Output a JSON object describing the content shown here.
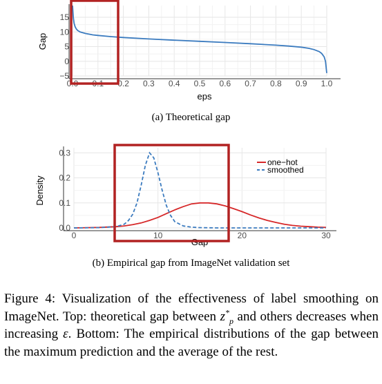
{
  "chart_data": [
    {
      "type": "line",
      "title": "",
      "xlabel": "eps",
      "ylabel": "Gap",
      "xlim": [
        0.0,
        1.0
      ],
      "ylim": [
        -5,
        19
      ],
      "x_ticks": [
        "0.0",
        "0.1",
        "0.2",
        "0.3",
        "0.4",
        "0.5",
        "0.6",
        "0.7",
        "0.8",
        "0.9",
        "1.0"
      ],
      "y_ticks": [
        "−5",
        "0",
        "5",
        "10",
        "15"
      ],
      "grid": true,
      "series": [
        {
          "color": "#3b7bbf",
          "x": [
            0.0,
            0.003,
            0.006,
            0.01,
            0.015,
            0.02,
            0.03,
            0.05,
            0.08,
            0.1,
            0.15,
            0.2,
            0.3,
            0.4,
            0.5,
            0.6,
            0.7,
            0.8,
            0.85,
            0.9,
            0.93,
            0.95,
            0.97,
            0.98,
            0.99,
            0.995,
            1.0
          ],
          "y": [
            19.0,
            15.0,
            13.0,
            11.8,
            11.0,
            10.5,
            10.0,
            9.5,
            9.0,
            8.8,
            8.4,
            8.1,
            7.6,
            7.2,
            6.8,
            6.4,
            6.0,
            5.5,
            5.2,
            4.8,
            4.4,
            4.0,
            3.3,
            2.7,
            1.5,
            0.0,
            -4.0
          ]
        }
      ],
      "annotations": [
        "highlight box over eps 0.0–0.15"
      ]
    },
    {
      "type": "line",
      "title": "",
      "xlabel": "Gap",
      "ylabel": "Density",
      "xlim": [
        0,
        30
      ],
      "ylim": [
        0.0,
        0.32
      ],
      "x_ticks": [
        "0",
        "10",
        "20",
        "30"
      ],
      "y_ticks": [
        "0.0",
        "0.1",
        "0.2",
        "0.3"
      ],
      "grid": true,
      "legend": "top-right",
      "series": [
        {
          "name": "one−hot",
          "color": "#d62728",
          "dash": "solid",
          "x": [
            0,
            3,
            5,
            6,
            7,
            8,
            9,
            10,
            11,
            12,
            13,
            14,
            15,
            16,
            17,
            18,
            19,
            20,
            21,
            22,
            23,
            24,
            25,
            26,
            27,
            28,
            29,
            30
          ],
          "y": [
            0.0,
            0.002,
            0.005,
            0.008,
            0.013,
            0.02,
            0.03,
            0.042,
            0.057,
            0.072,
            0.085,
            0.096,
            0.1,
            0.1,
            0.096,
            0.088,
            0.077,
            0.065,
            0.052,
            0.04,
            0.03,
            0.022,
            0.015,
            0.01,
            0.007,
            0.005,
            0.003,
            0.002
          ]
        },
        {
          "name": "smoothed",
          "color": "#3b7bbf",
          "dash": "dashed",
          "x": [
            0,
            3,
            5,
            6,
            6.5,
            7,
            7.5,
            8,
            8.5,
            9,
            9.5,
            10,
            10.5,
            11,
            11.5,
            12,
            13,
            14,
            15,
            17,
            20,
            25,
            30
          ],
          "y": [
            0.0,
            0.001,
            0.005,
            0.015,
            0.03,
            0.055,
            0.1,
            0.17,
            0.25,
            0.3,
            0.28,
            0.22,
            0.15,
            0.09,
            0.05,
            0.025,
            0.008,
            0.003,
            0.001,
            0.0,
            0.0,
            0.0,
            0.0
          ]
        }
      ],
      "annotations": [
        "highlight box over Gap ~5–18"
      ]
    }
  ],
  "captions": {
    "a": "(a) Theoretical gap",
    "b": "(b) Empirical gap from ImageNet validation set"
  },
  "figure_caption": {
    "part1": "Figure 4: Visualization of the effectiveness of label smoothing on ImageNet. Top: theoretical gap between ",
    "zsym": "z",
    "zsup": "*",
    "zsub": "p",
    "part2": " and others decreases when increasing ",
    "eps": "ε",
    "part3": ". Bottom: The empirical distributions of the gap between the maximum prediction and the average of the rest."
  },
  "colors": {
    "box": "#b22222",
    "grid": "#ebebeb",
    "axis": "#333333"
  }
}
